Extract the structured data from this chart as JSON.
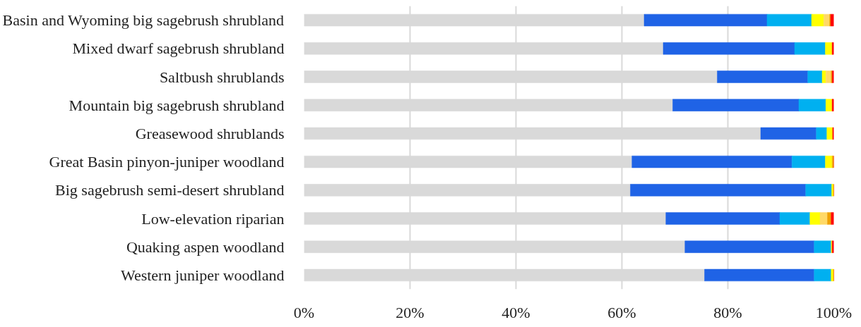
{
  "chart_data": {
    "type": "bar",
    "orientation": "horizontal",
    "stacked": true,
    "categories": [
      "Basin and Wyoming big sagebrush shrubland",
      "Mixed dwarf sagebrush shrubland",
      "Saltbush shrublands",
      "Mountain big sagebrush shrubland",
      "Greasewood shrublands",
      "Great Basin pinyon-juniper woodland",
      "Big sagebrush semi-desert shrubland",
      "Low-elevation riparian",
      "Quaking aspen woodland",
      "Western juniper woodland"
    ],
    "series": [
      {
        "color": "#d9d9d9",
        "values": [
          64.2,
          67.8,
          78.0,
          69.6,
          86.2,
          61.9,
          61.6,
          68.3,
          71.9,
          75.6
        ]
      },
      {
        "color": "#1f63e6",
        "values": [
          23.2,
          24.8,
          17.1,
          23.8,
          10.5,
          30.2,
          33.1,
          21.5,
          24.4,
          20.7
        ]
      },
      {
        "color": "#00b0f0",
        "values": [
          8.4,
          5.8,
          2.7,
          5.1,
          2.0,
          6.3,
          4.9,
          5.7,
          3.2,
          3.2
        ]
      },
      {
        "color": "#ffff00",
        "values": [
          2.3,
          1.3,
          0.7,
          1.2,
          1.1,
          1.3,
          0.4,
          1.9,
          0.2,
          0.5
        ]
      },
      {
        "color": "#ffd966",
        "values": [
          1.1,
          0,
          1.0,
          0,
          0,
          0,
          0,
          1.4,
          0,
          0
        ]
      },
      {
        "color": "#f0a000",
        "values": [
          0.2,
          0,
          0.2,
          0,
          0,
          0.3,
          0,
          0.7,
          0,
          0
        ]
      },
      {
        "color": "#ff0000",
        "values": [
          0.6,
          0.3,
          0.3,
          0.3,
          0.2,
          0,
          0,
          0.5,
          0.3,
          0
        ]
      }
    ],
    "xlim": [
      0,
      100
    ],
    "xticks": [
      {
        "value": 0,
        "label": "0%"
      },
      {
        "value": 20,
        "label": "20%"
      },
      {
        "value": 40,
        "label": "40%"
      },
      {
        "value": 60,
        "label": "60%"
      },
      {
        "value": 80,
        "label": "80%"
      },
      {
        "value": 100,
        "label": "100%"
      }
    ],
    "grid": "x"
  }
}
